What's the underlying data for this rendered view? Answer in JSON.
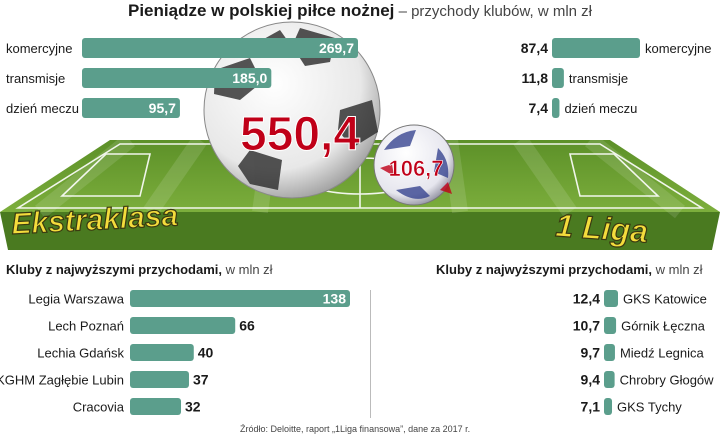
{
  "title": "Pieniądze w polskiej piłce nożnej",
  "subtitle": "– przychody klubów, w mln zł",
  "totals": {
    "ekstraklasa": "550,4",
    "liga1": "106,7"
  },
  "league_labels": {
    "ekstraklasa": "Ekstraklasa",
    "liga1": "1 Liga"
  },
  "sections": {
    "left_head": "Kluby z najwyższymi przychodami,",
    "left_unit": " w mln zł",
    "right_head": "Kluby z najwyższymi przychodami,",
    "right_unit": " w mln zł"
  },
  "source": "Źródło: Deloitte, raport „1Liga finansowa”, dane za 2017 r.",
  "colors": {
    "bar": "#5b9e8c",
    "accent": "#c00018",
    "league_text": "#f4dc3c",
    "grass": "#6ea034"
  },
  "chart_data": [
    {
      "type": "bar",
      "orientation": "horizontal",
      "group": "Ekstraklasa",
      "categories": [
        "komercyjne",
        "transmisje",
        "dzień meczu"
      ],
      "values": [
        269.7,
        185.0,
        95.7
      ],
      "labels": [
        "269,7",
        "185,0",
        "95,7"
      ]
    },
    {
      "type": "bar",
      "orientation": "horizontal",
      "group": "1 Liga",
      "categories": [
        "komercyjne",
        "transmisje",
        "dzień meczu"
      ],
      "values": [
        87.4,
        11.8,
        7.4
      ],
      "labels": [
        "87,4",
        "11,8",
        "7,4"
      ]
    },
    {
      "type": "bar",
      "orientation": "horizontal",
      "group": "Ekstraklasa clubs",
      "categories": [
        "Legia Warszawa",
        "Lech Poznań",
        "Lechia Gdańsk",
        "KGHM Zagłębie Lubin",
        "Cracovia"
      ],
      "values": [
        138,
        66,
        40,
        37,
        32
      ],
      "labels": [
        "138",
        "66",
        "40",
        "37",
        "32"
      ]
    },
    {
      "type": "bar",
      "orientation": "horizontal",
      "group": "1 Liga clubs",
      "categories": [
        "GKS Katowice",
        "Górnik Łęczna",
        "Miedź Legnica",
        "Chrobry Głogów",
        "GKS Tychy"
      ],
      "values": [
        12.4,
        10.7,
        9.7,
        9.4,
        7.1
      ],
      "labels": [
        "12,4",
        "10,7",
        "9,7",
        "9,4",
        "7,1"
      ]
    }
  ]
}
